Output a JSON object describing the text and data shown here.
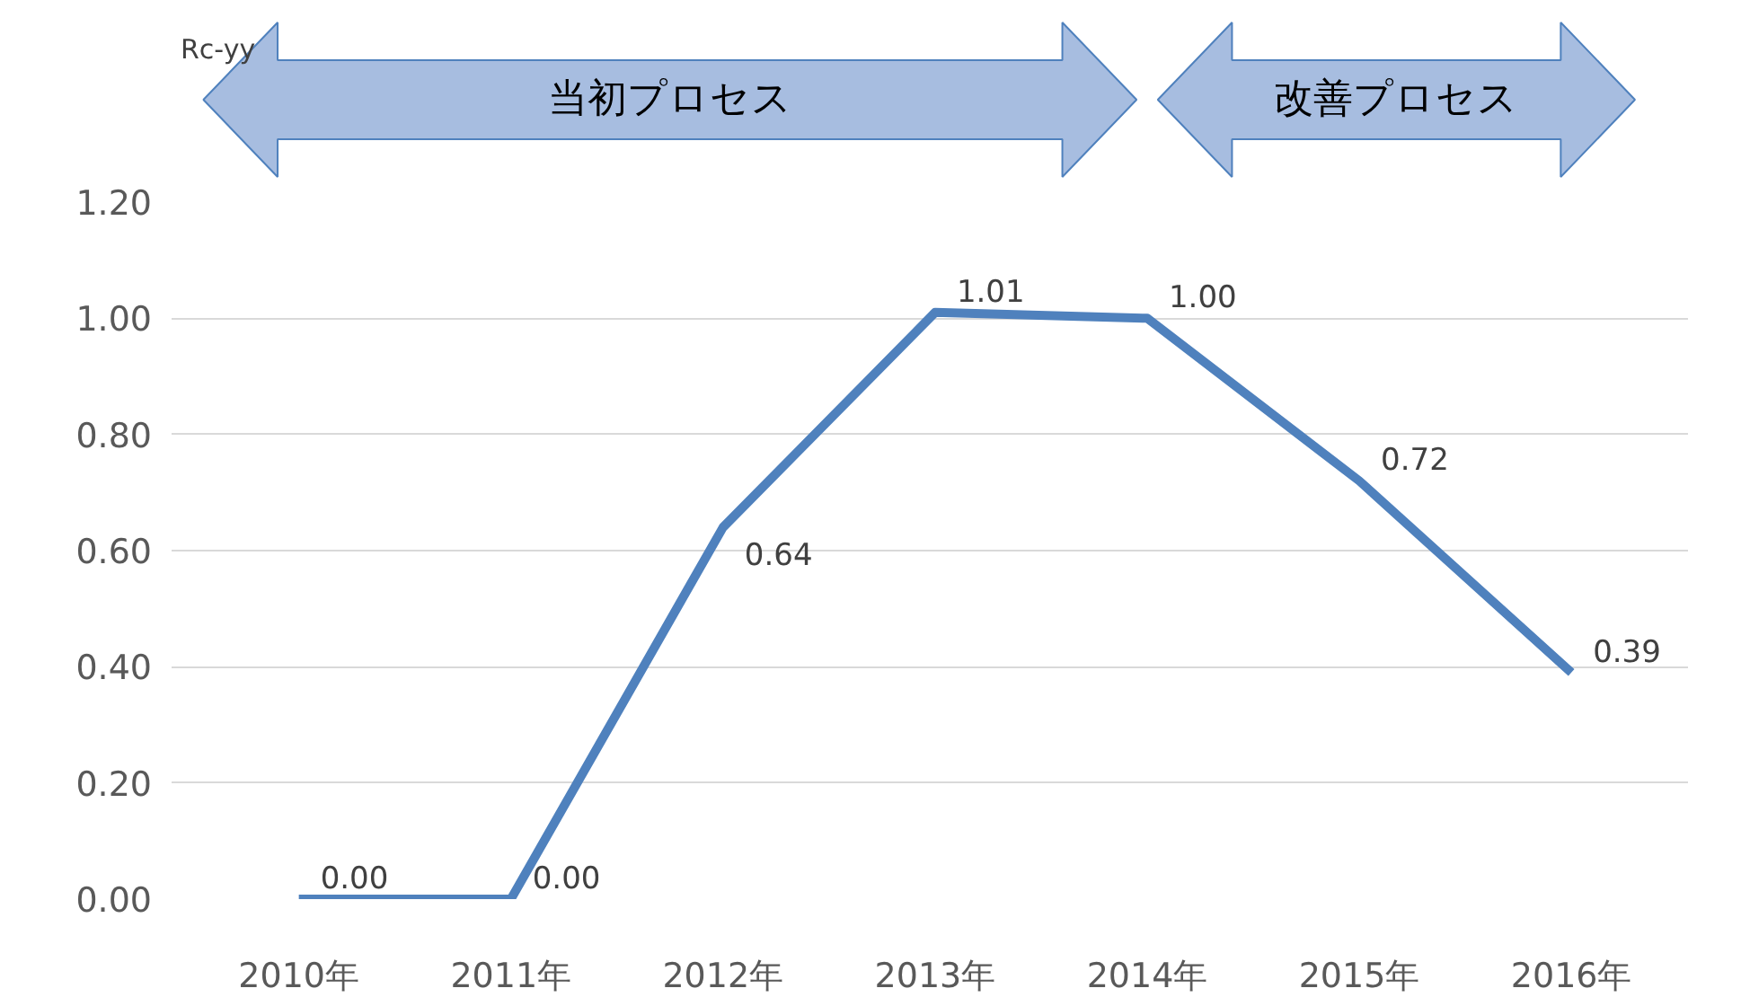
{
  "chart_data": {
    "type": "line",
    "categories": [
      "2010年",
      "2011年",
      "2012年",
      "2013年",
      "2014年",
      "2015年",
      "2016年"
    ],
    "series": [
      {
        "color": "#4f81bd",
        "values": [
          0.0,
          0.0,
          0.64,
          1.01,
          1.0,
          0.72,
          0.39
        ]
      }
    ],
    "ylim": [
      0,
      1.2
    ],
    "yticks": [
      {
        "value": 0,
        "label": "0.00"
      },
      {
        "value": 0.2,
        "label": "0.20"
      },
      {
        "value": 0.4,
        "label": "0.40"
      },
      {
        "value": 0.6,
        "label": "0.60"
      },
      {
        "value": 0.8,
        "label": "0.80"
      },
      {
        "value": 1.0,
        "label": "1.00"
      },
      {
        "value": 1.2,
        "label": "1.20"
      }
    ],
    "grid": "y",
    "marker": "none",
    "line_style": "solid",
    "value_labels": [
      "0.00",
      "0.00",
      "0.64",
      "1.01",
      "1.00",
      "0.72",
      "0.39"
    ],
    "annotations": [
      "Rc-yy",
      "当初プロセス",
      "改善プロセス"
    ]
  }
}
